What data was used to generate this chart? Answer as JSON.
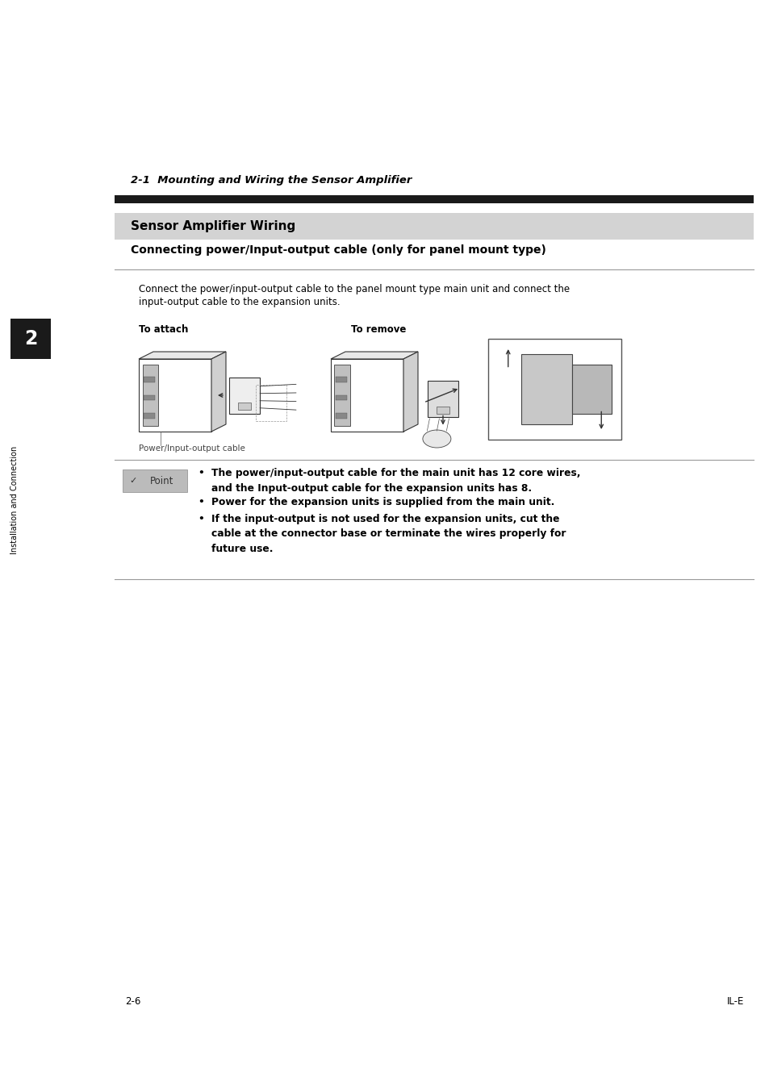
{
  "bg_color": "#ffffff",
  "page_width": 9.54,
  "page_height": 13.5,
  "dpi": 100,
  "top_section_title": "2-1  Mounting and Wiring the Sensor Amplifier",
  "section_header": "Sensor Amplifier Wiring",
  "section_header_bg": "#d3d3d3",
  "subsection_title": "Connecting power/Input-output cable (only for panel mount type)",
  "body_line1": "Connect the power/input-output cable to the panel mount type main unit and connect the",
  "body_line2": "input-output cable to the expansion units.",
  "label_attach": "To attach",
  "label_remove": "To remove",
  "caption": "Power/Input-output cable",
  "point_box_color": "#bbbbbb",
  "point_label": "Point",
  "bullet1_bold": "The power/input-output cable for the main unit has 12 core wires,",
  "bullet1_bold2": "and the Input-output cable for the expansion units has 8.",
  "bullet2": "Power for the expansion units is supplied from the main unit.",
  "bullet3a": "If the input-output is not used for the expansion units, cut the",
  "bullet3b": "cable at the connector base or terminate the wires properly for",
  "bullet3c": "future use.",
  "sidebar_text": "Installation and Connection",
  "sidebar_number": "2",
  "footer_left": "2-6",
  "footer_right": "IL-E",
  "dark_bar_color": "#1a1a1a",
  "thin_line_color": "#999999",
  "text_color": "#000000"
}
